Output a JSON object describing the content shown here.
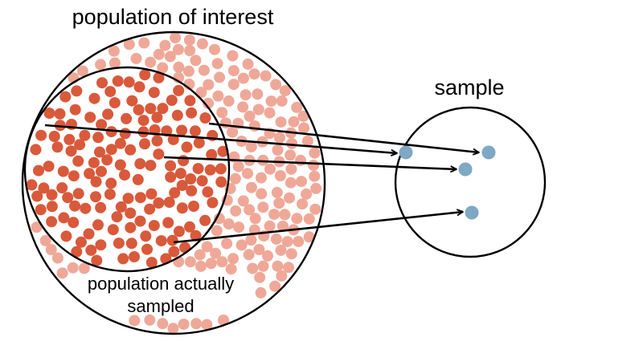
{
  "labels": {
    "population_of_interest": "population of interest",
    "sample": "sample",
    "population_sampled_line1": "population actually",
    "population_sampled_line2": "sampled"
  },
  "colors": {
    "sampled_dot": "#d9593b",
    "unsampled_dot": "#efa898",
    "sample_dot": "#7ea8c4",
    "outline": "#000000"
  },
  "arrows": {
    "count": 4
  }
}
